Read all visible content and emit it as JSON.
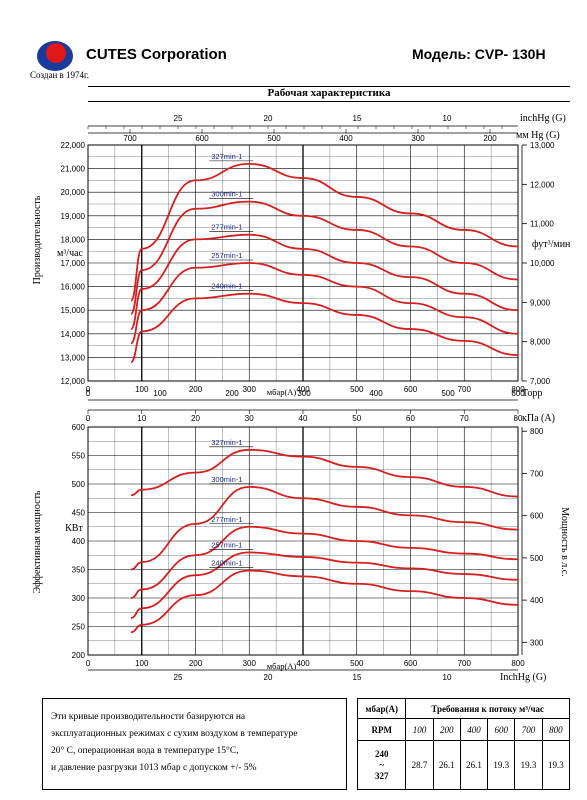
{
  "header": {
    "company": "CUTES Corporation",
    "model": "Модель: CVP- 130H",
    "founded": "Создан в 1974г."
  },
  "title": "Рабочая характеристика",
  "chart_data": [
    {
      "type": "line",
      "name": "capacity",
      "x_label": "мбар(A)",
      "x": [
        80,
        100,
        200,
        300,
        400,
        500,
        600,
        700,
        800
      ],
      "xlim": [
        0,
        800
      ],
      "x_ticks": [
        "0",
        "100",
        "200",
        "300",
        "400",
        "500",
        "600",
        "700",
        "800"
      ],
      "ylabel": "Производительность м³/час",
      "ylim": [
        12000,
        22000
      ],
      "y_ticks": [
        "12,000",
        "13,000",
        "14,000",
        "15,000",
        "16,000",
        "17,000",
        "18,000",
        "19,000",
        "20,000",
        "21,000",
        "22,000"
      ],
      "right_axis": {
        "label": "фут³/мин",
        "ticks": [
          "7,000",
          "8,000",
          "9,000",
          "10,000",
          "11,000",
          "12,000",
          "13,000"
        ],
        "range": [
          7000,
          13000
        ]
      },
      "top_axis_inchhg": {
        "label": "inchHg (G)",
        "ticks": [
          "25",
          "20",
          "15",
          "10"
        ]
      },
      "top_axis_mmhg": {
        "label": "мм Hg (G)",
        "ticks": [
          "700",
          "600",
          "500",
          "400",
          "300",
          "200"
        ]
      },
      "series": [
        {
          "name": "327min-1",
          "values": [
            15400,
            17600,
            20500,
            21200,
            20600,
            19800,
            19100,
            18400,
            17700
          ]
        },
        {
          "name": "300min-1",
          "values": [
            14850,
            16700,
            19300,
            19600,
            19000,
            18400,
            17700,
            17000,
            16300
          ]
        },
        {
          "name": "277min-1",
          "values": [
            14200,
            15900,
            18000,
            18200,
            17600,
            17000,
            16400,
            15700,
            15000
          ]
        },
        {
          "name": "257min-1",
          "values": [
            13600,
            15000,
            16800,
            17000,
            16500,
            16000,
            15300,
            14700,
            14000
          ]
        },
        {
          "name": "240min-1",
          "values": [
            12800,
            14100,
            15500,
            15700,
            15300,
            14800,
            14200,
            13700,
            13100
          ]
        }
      ]
    },
    {
      "type": "line",
      "name": "power",
      "x_label": "мбар(A)",
      "x": [
        80,
        100,
        200,
        300,
        400,
        500,
        600,
        700,
        800
      ],
      "xlim": [
        0,
        800
      ],
      "x_ticks": [
        "0",
        "100",
        "200",
        "300",
        "400",
        "500",
        "600",
        "700",
        "800"
      ],
      "ylabel": "Эффективная мощность КВт",
      "ylim": [
        200,
        600
      ],
      "y_ticks": [
        "200",
        "250",
        "300",
        "350",
        "400",
        "450",
        "500",
        "550",
        "600"
      ],
      "right_axis": {
        "label": "Мощность в л.с.",
        "ticks": [
          "300",
          "400",
          "500",
          "600",
          "700",
          "800"
        ],
        "range": [
          270,
          810
        ]
      },
      "top_axis_torr": {
        "label": "Торр",
        "ticks": [
          "0",
          "100",
          "200",
          "300",
          "400",
          "500",
          "600"
        ]
      },
      "top_axis_kpa": {
        "label": "кПа (A)",
        "ticks": [
          "0",
          "10",
          "20",
          "30",
          "40",
          "50",
          "60",
          "70",
          "80"
        ]
      },
      "bottom_axis_inchhg": {
        "label": "InchHg (G)",
        "ticks": [
          "25",
          "20",
          "15",
          "10"
        ]
      },
      "series": [
        {
          "name": "327min-1",
          "values": [
            480,
            490,
            520,
            560,
            548,
            530,
            512,
            495,
            478
          ]
        },
        {
          "name": "300min-1",
          "values": [
            350,
            363,
            430,
            495,
            475,
            460,
            445,
            433,
            420
          ]
        },
        {
          "name": "277min-1",
          "values": [
            300,
            315,
            375,
            425,
            413,
            400,
            388,
            378,
            368
          ]
        },
        {
          "name": "257min-1",
          "values": [
            265,
            282,
            340,
            380,
            372,
            362,
            352,
            342,
            332
          ]
        },
        {
          "name": "240min-1",
          "values": [
            240,
            253,
            305,
            348,
            338,
            325,
            312,
            300,
            288
          ]
        }
      ]
    }
  ],
  "note": {
    "line1": "Эти кривые производительности базируются на",
    "line2": "эксплуатационных режимах с сухим воздухом в температуре",
    "line3": "20° С, операционная вода в температуре 15°С,",
    "line4": "и давление разгрузки 1013 мбар с допуском +/- 5%"
  },
  "requirements": {
    "head_mbar": "мбар(A)",
    "head_title": "Требования к потоку м³/час",
    "rpm_label": "RPM",
    "flow_points": [
      "100",
      "200",
      "400",
      "600",
      "700",
      "800"
    ],
    "rpm_value_1": "240",
    "rpm_value_2": "~",
    "rpm_value_3": "327",
    "values": [
      "28.7",
      "26.1",
      "26.1",
      "19.3",
      "19.3",
      "19.3"
    ]
  },
  "colors": {
    "curve": "#d42020",
    "grid": "#000000",
    "logo_red": "#e11818",
    "logo_blue": "#1a3a9c"
  }
}
